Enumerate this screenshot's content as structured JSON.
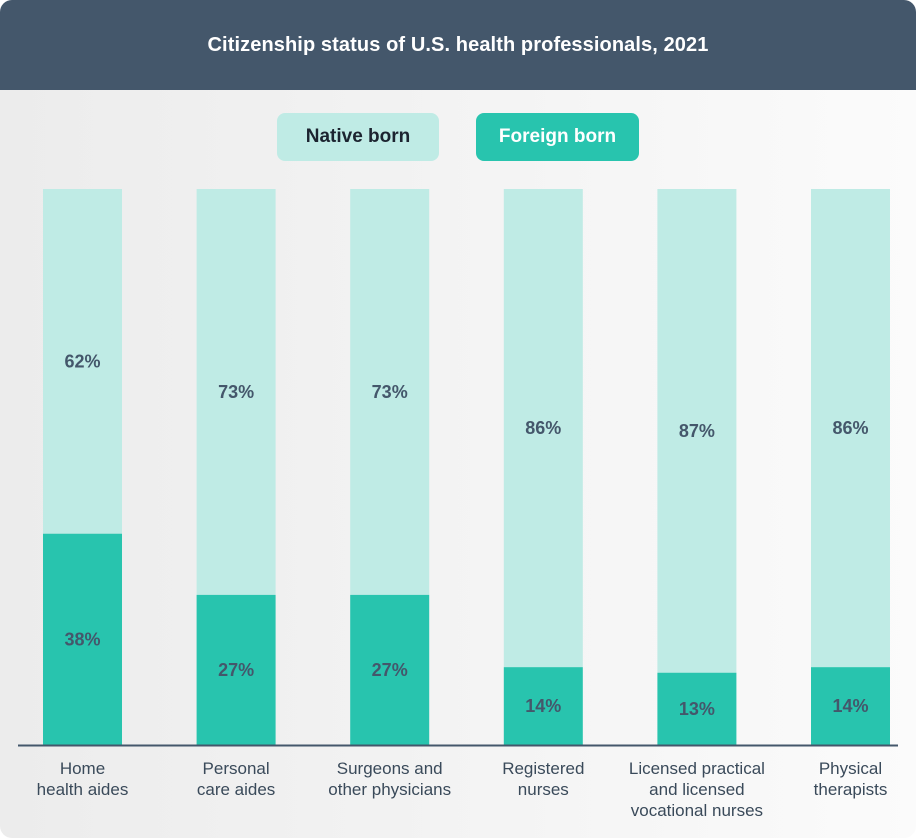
{
  "title": "Citizenship status of U.S. health professionals, 2021",
  "colors": {
    "header": "#44576b",
    "native": "#bfebe5",
    "foreign": "#28c4ae",
    "axis": "#44576b"
  },
  "legend": [
    {
      "label": "Native born",
      "color": "#bfebe5"
    },
    {
      "label": "Foreign born",
      "color": "#28c4ae"
    }
  ],
  "chart_data": {
    "type": "bar",
    "stacked": true,
    "title": "Citizenship status of U.S. health professionals, 2021",
    "categories": [
      [
        "Home",
        "health aides"
      ],
      [
        "Personal",
        "care aides"
      ],
      [
        "Surgeons and",
        "other physicians"
      ],
      [
        "Registered",
        "nurses"
      ],
      [
        "Licensed practical",
        "and licensed",
        "vocational nurses"
      ],
      [
        "Physical",
        "therapists"
      ]
    ],
    "series": [
      {
        "name": "Foreign born",
        "values": [
          38,
          27,
          27,
          14,
          13,
          14
        ],
        "labels": [
          "38%",
          "27%",
          "27%",
          "14%",
          "13%",
          "14%"
        ]
      },
      {
        "name": "Native born",
        "values": [
          62,
          73,
          73,
          86,
          87,
          86
        ],
        "labels": [
          "62%",
          "73%",
          "73%",
          "86%",
          "87%",
          "86%"
        ]
      }
    ],
    "ylim": [
      0,
      100
    ],
    "legend_position": "top-center",
    "grid": false
  }
}
